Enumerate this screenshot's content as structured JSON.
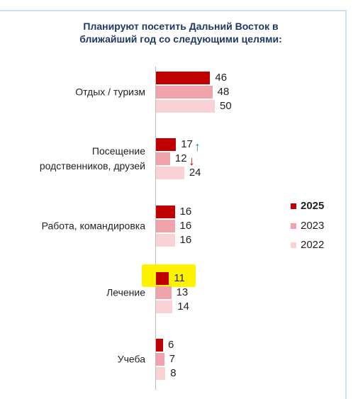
{
  "chart_data": {
    "type": "bar",
    "orientation": "horizontal",
    "title": "Планируют посетить Дальний Восток в ближайший год со следующими целями:",
    "categories": [
      "Отдых / туризм",
      "Посещение родственников, друзей",
      "Работа, командировка",
      "Лечение",
      "Учеба"
    ],
    "series": [
      {
        "name": "2025",
        "color": "#c00000",
        "values": [
          46,
          17,
          16,
          11,
          6
        ]
      },
      {
        "name": "2023",
        "color": "#f0a3aa",
        "values": [
          48,
          12,
          16,
          13,
          7
        ]
      },
      {
        "name": "2022",
        "color": "#f9d2d6",
        "values": [
          50,
          24,
          16,
          14,
          8
        ]
      }
    ]
  }
}
